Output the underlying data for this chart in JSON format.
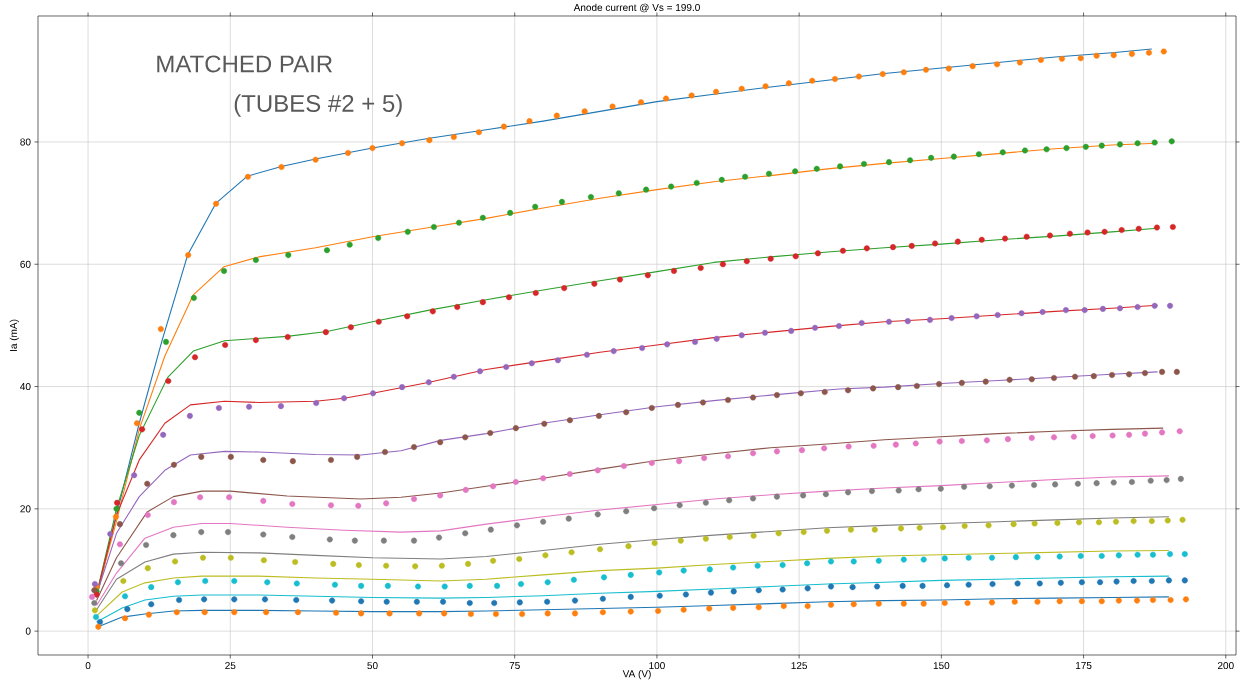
{
  "chart_data": {
    "type": "line",
    "title": "Anode current @ Vs = 199.0",
    "xlabel": "VA (V)",
    "ylabel": "Ia (mA)",
    "annotations": [
      "MATCHED PAIR",
      "(TUBES #2 + 5)"
    ],
    "xlim": [
      -8.8,
      201.8
    ],
    "ylim": [
      -3.9,
      100.6
    ],
    "xticks": [
      0,
      25,
      50,
      75,
      100,
      125,
      150,
      175,
      200
    ],
    "yticks": [
      0,
      20,
      40,
      60,
      80
    ],
    "grid": true,
    "marker": "circle",
    "series": [
      {
        "marker": "none",
        "color": "#1f77b4",
        "x": [
          1.5,
          5,
          9,
          13,
          17.5,
          22.5,
          28,
          34,
          40,
          50,
          60,
          70,
          80,
          90,
          100,
          110,
          120,
          130,
          140,
          150,
          160,
          170,
          180,
          187
        ],
        "values": [
          5.5,
          19,
          34,
          47.5,
          61.5,
          70,
          74.4,
          76,
          77.2,
          79,
          80.6,
          82,
          83.4,
          85,
          86.6,
          87.8,
          89,
          90.1,
          91.2,
          92.1,
          93,
          93.9,
          94.6,
          95.2
        ]
      },
      {
        "type": "scatter",
        "color": "#ff7f0e",
        "x": [
          1.5,
          4.9,
          8.6,
          12.8,
          17.6,
          22.5,
          28.1,
          34,
          40,
          45.7,
          50,
          55.2,
          60,
          64.3,
          68.7,
          73.1,
          77.6,
          82.4,
          87.3,
          92.2,
          97.2,
          101.6,
          106.1,
          110.4,
          114.9,
          119.1,
          123.2,
          127.3,
          131.3,
          135.5,
          139.7,
          143.4,
          147.3,
          151.3,
          155.5,
          159.8,
          163.8,
          167.5,
          171.2,
          174.5,
          177.3,
          180.3,
          183.5,
          186.5,
          189.1
        ],
        "values": [
          7.2,
          18.7,
          34.0,
          49.4,
          61.5,
          69.9,
          74.3,
          75.9,
          77.1,
          78.2,
          79.0,
          79.8,
          80.3,
          80.8,
          81.6,
          82.5,
          83.4,
          84.3,
          85.0,
          85.8,
          86.5,
          87.1,
          87.6,
          88.2,
          88.7,
          89.1,
          89.6,
          90.0,
          90.3,
          90.7,
          91.1,
          91.4,
          91.8,
          92.0,
          92.4,
          92.7,
          93.0,
          93.4,
          93.6,
          93.7,
          94.1,
          94.2,
          94.4,
          94.6,
          94.8
        ]
      },
      {
        "marker": "none",
        "color": "#ff7f0e",
        "x": [
          1.5,
          5,
          9,
          13.5,
          18.5,
          23.9,
          30,
          40,
          50,
          60,
          70,
          80,
          90,
          100,
          110,
          120,
          130,
          140,
          150,
          160,
          170,
          180,
          188
        ],
        "values": [
          6,
          18,
          33,
          45,
          55,
          59.6,
          61.2,
          62.7,
          64.5,
          66,
          67.5,
          69.2,
          70.8,
          72.2,
          73.5,
          74.5,
          75.6,
          76.5,
          77.3,
          78.1,
          78.9,
          79.5,
          79.8
        ]
      },
      {
        "type": "scatter",
        "color": "#2ca02c",
        "x": [
          1.5,
          5,
          9,
          13.7,
          18.6,
          23.9,
          29.5,
          35.2,
          42,
          46,
          51,
          56.2,
          60.8,
          65.2,
          69.4,
          74.2,
          78.6,
          83.3,
          88.4,
          93.3,
          98.1,
          102.5,
          107,
          111.4,
          115.5,
          119.7,
          124.3,
          128.1,
          132.2,
          136.4,
          140.8,
          144.5,
          148.2,
          152.2,
          156.6,
          160.8,
          164.7,
          168.5,
          172,
          175.4,
          178.2,
          181.4,
          184.5,
          187.5,
          190.5
        ],
        "values": [
          6.5,
          20,
          35.7,
          47.3,
          54.5,
          58.9,
          60.7,
          61.5,
          62.3,
          63.2,
          64.3,
          65.3,
          66.1,
          66.8,
          67.6,
          68.4,
          69.4,
          70.2,
          71.0,
          71.6,
          72.2,
          72.7,
          73.3,
          73.8,
          74.3,
          74.8,
          75.2,
          75.6,
          76.0,
          76.4,
          76.7,
          77.0,
          77.4,
          77.6,
          78.0,
          78.3,
          78.6,
          78.8,
          79.0,
          79.2,
          79.4,
          79.6,
          79.8,
          79.9,
          80.1
        ]
      },
      {
        "marker": "none",
        "color": "#2ca02c",
        "x": [
          1.5,
          5,
          9,
          14,
          18.5,
          24,
          35,
          42,
          50,
          60,
          70,
          80,
          90,
          100,
          110,
          120,
          130,
          140,
          150,
          160,
          170,
          180,
          188
        ],
        "values": [
          6,
          20,
          32,
          41.5,
          45.8,
          47.5,
          48.2,
          49,
          50.6,
          52.5,
          54.2,
          55.8,
          57.3,
          58.8,
          60.3,
          61.2,
          62,
          62.7,
          63.3,
          64,
          64.6,
          65.3,
          65.9
        ]
      },
      {
        "type": "scatter",
        "color": "#d62728",
        "x": [
          1.5,
          5.1,
          9.5,
          14.1,
          18.8,
          24.1,
          29.5,
          35.1,
          41.8,
          46.2,
          51.1,
          56.1,
          60.6,
          64.9,
          69.4,
          74,
          78.7,
          83.7,
          89,
          93.5,
          98.4,
          103,
          107.7,
          111.6,
          115.8,
          120,
          124.4,
          128.3,
          132.7,
          136.9,
          141.5,
          144.8,
          148.9,
          152.9,
          157.1,
          161.2,
          165,
          169.1,
          172.6,
          175.7,
          178.7,
          181.7,
          184.7,
          187.9,
          190.7
        ],
        "values": [
          6.0,
          21.0,
          33.0,
          40.9,
          44.8,
          46.8,
          47.6,
          48.1,
          48.9,
          49.7,
          50.6,
          51.5,
          52.3,
          53.0,
          53.8,
          54.6,
          55.3,
          56.1,
          56.8,
          57.5,
          58.2,
          58.9,
          59.4,
          60.0,
          60.5,
          60.9,
          61.3,
          61.8,
          62.2,
          62.6,
          62.8,
          63.0,
          63.4,
          63.7,
          64.0,
          64.2,
          64.5,
          64.7,
          65.0,
          65.2,
          65.3,
          65.6,
          65.8,
          66.0,
          66.1
        ]
      },
      {
        "marker": "none",
        "color": "#d62728",
        "x": [
          1.5,
          5,
          9,
          13.5,
          18,
          24,
          30,
          40,
          45,
          50,
          60,
          70,
          80,
          90,
          100,
          110,
          120,
          130,
          140,
          150,
          160,
          170,
          180,
          188
        ],
        "values": [
          6,
          19,
          28,
          34,
          37,
          37.6,
          37.4,
          37.6,
          38.1,
          38.9,
          40.7,
          42.8,
          44.2,
          45.6,
          46.8,
          48.0,
          48.9,
          49.8,
          50.6,
          51.1,
          51.7,
          52.3,
          52.8,
          53.3
        ]
      },
      {
        "type": "scatter",
        "color": "#9467bd",
        "x": [
          1.2,
          3.9,
          8.1,
          13.2,
          17.9,
          23,
          28.3,
          33.9,
          40.1,
          45,
          50.1,
          55.2,
          59.9,
          64.3,
          68.9,
          73.5,
          78,
          82.6,
          87.7,
          92.4,
          97.4,
          101.8,
          106.7,
          110.5,
          114.9,
          119,
          123.6,
          127.8,
          132,
          136,
          140.8,
          144.1,
          148,
          151.8,
          156.2,
          159.9,
          164.1,
          167.8,
          171.9,
          175.2,
          178.4,
          181.4,
          184.5,
          187.5,
          190.2
        ],
        "values": [
          7.7,
          15.9,
          25.5,
          32.1,
          35.2,
          36.5,
          36.7,
          36.8,
          37.3,
          38.1,
          38.9,
          39.9,
          40.7,
          41.6,
          42.5,
          43.2,
          43.8,
          44.3,
          45.2,
          45.8,
          46.3,
          46.9,
          47.3,
          47.8,
          48.4,
          48.8,
          49.1,
          49.6,
          49.9,
          50.4,
          50.6,
          50.7,
          50.9,
          51.2,
          51.5,
          51.7,
          52.0,
          52.2,
          52.5,
          52.5,
          52.7,
          52.8,
          53.0,
          53.2,
          53.2
        ]
      },
      {
        "marker": "none",
        "color": "#9467bd",
        "x": [
          1.5,
          5,
          9,
          13.5,
          18,
          24,
          30,
          40,
          48,
          55,
          62,
          70,
          80,
          90,
          100,
          110,
          120,
          132,
          140,
          150,
          160,
          170,
          180,
          188
        ],
        "values": [
          6,
          16,
          22,
          26.3,
          28.8,
          29.4,
          29.3,
          28.9,
          28.8,
          29.5,
          31.2,
          32.3,
          34,
          35.4,
          36.7,
          37.7,
          38.6,
          39.6,
          39.9,
          40.5,
          41,
          41.5,
          42,
          42.4
        ]
      },
      {
        "type": "scatter",
        "color": "#8c564b",
        "x": [
          1.1,
          5.6,
          10.4,
          15.1,
          19.9,
          25.1,
          30.8,
          36,
          42.7,
          47.3,
          52.2,
          57.3,
          61.9,
          66.3,
          70.7,
          75.2,
          80.2,
          84.7,
          89.8,
          94.6,
          99.1,
          103.7,
          108.1,
          112.5,
          116.9,
          121.1,
          125.3,
          129.5,
          133.6,
          138,
          142.4,
          145.7,
          149.6,
          153.6,
          157.8,
          162,
          165.9,
          169.8,
          173.5,
          176.8,
          180,
          183,
          185.8,
          188.8,
          191.4
        ],
        "values": [
          6.7,
          17.5,
          24.1,
          27.2,
          28.5,
          28.5,
          28.0,
          27.8,
          28.0,
          28.5,
          29.3,
          30.1,
          30.9,
          31.7,
          32.4,
          33.2,
          33.9,
          34.5,
          35.2,
          35.8,
          36.5,
          37.0,
          37.4,
          37.8,
          38.2,
          38.6,
          38.9,
          39.1,
          39.4,
          39.7,
          39.9,
          40.1,
          40.4,
          40.6,
          40.8,
          41.1,
          41.2,
          41.4,
          41.6,
          41.7,
          41.9,
          42.0,
          42.2,
          42.4,
          42.4
        ]
      },
      {
        "marker": "none",
        "color": "#8c564b",
        "x": [
          1.5,
          5,
          10.4,
          15,
          20,
          25,
          35,
          48,
          55,
          62,
          70,
          80,
          90,
          100,
          110,
          120,
          130,
          140,
          150,
          160,
          170,
          180,
          189
        ],
        "values": [
          5,
          12,
          19.5,
          22,
          22.9,
          22.9,
          22.1,
          21.6,
          21.9,
          22.6,
          23.7,
          25,
          26.5,
          27.9,
          29,
          30,
          30.6,
          31.3,
          31.8,
          32.3,
          32.7,
          33,
          33.2
        ]
      },
      {
        "type": "scatter",
        "color": "#e377c2",
        "x": [
          0.7,
          5.6,
          10.5,
          15.1,
          19.7,
          24.8,
          30.8,
          35.9,
          42.7,
          47.5,
          52.4,
          57.3,
          61.9,
          66.4,
          71.2,
          75.2,
          80,
          84.7,
          89.6,
          94.2,
          99.1,
          103.9,
          108.3,
          112.5,
          116.9,
          121.1,
          125.5,
          129.4,
          133.7,
          138.1,
          142,
          145.5,
          149.7,
          153.6,
          158,
          161.7,
          165.9,
          169.8,
          173.3,
          176.6,
          180.1,
          183,
          185.8,
          188.8,
          191.9
        ],
        "values": [
          5.6,
          14.2,
          19.0,
          21.1,
          21.9,
          21.9,
          21.3,
          20.8,
          20.6,
          20.5,
          20.9,
          21.6,
          22.2,
          23.1,
          23.7,
          24.4,
          25.0,
          25.7,
          26.3,
          27.0,
          27.5,
          27.8,
          28.3,
          28.6,
          29.1,
          29.4,
          29.6,
          29.9,
          30.2,
          30.3,
          30.5,
          30.7,
          31.0,
          31.1,
          31.2,
          31.4,
          31.6,
          31.7,
          31.8,
          31.9,
          32.0,
          32.1,
          32.3,
          32.5,
          32.7
        ]
      },
      {
        "marker": "none",
        "color": "#e377c2",
        "x": [
          1.5,
          5,
          10,
          15,
          20,
          25,
          35,
          45,
          55,
          62,
          70,
          80,
          90,
          100,
          110,
          120,
          130,
          140,
          150,
          160,
          170,
          180,
          190
        ],
        "values": [
          4.2,
          9.5,
          15.2,
          17,
          17.6,
          17.6,
          17,
          16.5,
          16.2,
          16.4,
          17.5,
          18.7,
          19.8,
          20.7,
          21.6,
          22.3,
          22.9,
          23.4,
          23.8,
          24.3,
          24.8,
          25.2,
          25.4
        ]
      },
      {
        "type": "scatter",
        "color": "#7f7f7f",
        "x": [
          1.1,
          5.8,
          10.2,
          15,
          19.9,
          24.6,
          30.8,
          35.9,
          42.5,
          46.9,
          52,
          57.3,
          61.7,
          66.3,
          70.8,
          75.4,
          80,
          84.5,
          89.6,
          94.6,
          99.5,
          104,
          108.6,
          112.7,
          116.9,
          121.1,
          125.7,
          129.7,
          133.6,
          137.8,
          142.5,
          146,
          149.9,
          154,
          158.5,
          162.4,
          166.3,
          170,
          174,
          177.3,
          180.3,
          183.5,
          186.8,
          189.6,
          192.1
        ],
        "values": [
          4.6,
          11.1,
          14.1,
          15.7,
          16.2,
          16.2,
          15.8,
          15.4,
          15.0,
          14.8,
          14.8,
          14.8,
          15.3,
          16.0,
          16.6,
          17.3,
          17.9,
          18.4,
          19.1,
          19.6,
          20.1,
          20.6,
          21.0,
          21.4,
          21.7,
          22.0,
          22.2,
          22.4,
          22.7,
          22.9,
          23.0,
          23.2,
          23.3,
          23.6,
          23.7,
          23.8,
          23.9,
          24.0,
          24.1,
          24.2,
          24.3,
          24.4,
          24.6,
          24.7,
          24.9
        ]
      },
      {
        "marker": "none",
        "color": "#7f7f7f",
        "x": [
          1.5,
          5,
          10,
          15,
          20,
          30,
          40,
          50,
          62,
          70,
          80,
          90,
          100,
          110,
          120,
          130,
          140,
          150,
          160,
          170,
          180,
          190
        ],
        "values": [
          3.5,
          8.5,
          11.3,
          12.6,
          12.9,
          12.8,
          12.4,
          12,
          11.8,
          12.2,
          13.2,
          14.2,
          15,
          15.7,
          16.3,
          16.9,
          17.3,
          17.6,
          17.9,
          18.2,
          18.5,
          18.7
        ]
      },
      {
        "type": "scatter",
        "color": "#bcbd22",
        "x": [
          1.2,
          6.2,
          10.5,
          15.3,
          20.2,
          25.1,
          30.9,
          36.4,
          43.1,
          47.6,
          52.4,
          57.5,
          62.2,
          66.8,
          71.2,
          75.8,
          80.4,
          85,
          90,
          95,
          99.6,
          104.2,
          108.6,
          112.8,
          117,
          121.4,
          125.8,
          129.9,
          134.1,
          138.3,
          142.9,
          146.2,
          150.3,
          154.1,
          158.3,
          162.7,
          166.4,
          170.4,
          174.2,
          177.7,
          180.7,
          183.8,
          187,
          189.8,
          192.4
        ],
        "values": [
          3.4,
          8.2,
          10.3,
          11.4,
          12.0,
          12.0,
          11.6,
          11.3,
          11.0,
          10.8,
          10.7,
          10.6,
          10.7,
          11.0,
          11.5,
          11.8,
          12.4,
          12.9,
          13.4,
          13.9,
          14.4,
          14.8,
          15.1,
          15.4,
          15.6,
          16.0,
          16.2,
          16.4,
          16.6,
          16.6,
          16.8,
          16.9,
          17.0,
          17.2,
          17.3,
          17.5,
          17.6,
          17.7,
          17.8,
          17.8,
          17.9,
          18.0,
          18.0,
          18.1,
          18.2
        ]
      },
      {
        "marker": "none",
        "color": "#bcbd22",
        "x": [
          1.5,
          6,
          10,
          15,
          20,
          30,
          40,
          50,
          62,
          70,
          80,
          90,
          100,
          110,
          120,
          130,
          140,
          150,
          160,
          170,
          180,
          190
        ],
        "values": [
          2.5,
          6.4,
          7.9,
          8.7,
          9.0,
          9.0,
          8.7,
          8.5,
          8.2,
          8.5,
          9.2,
          9.9,
          10.3,
          10.9,
          11.4,
          11.9,
          12.3,
          12.5,
          12.7,
          12.9,
          13.1,
          13.2
        ]
      },
      {
        "type": "scatter",
        "color": "#17becf",
        "x": [
          1.4,
          6.5,
          11.1,
          15.8,
          20.6,
          25.7,
          31.5,
          36.7,
          43.4,
          48,
          52.7,
          58,
          62.7,
          67.1,
          71.9,
          76.1,
          80.8,
          85.4,
          90.7,
          95.4,
          100.4,
          104.7,
          109.3,
          113.4,
          117.7,
          122.1,
          126.4,
          130.6,
          134.6,
          139,
          143.4,
          146.9,
          150.6,
          154.8,
          158.9,
          163.1,
          166.9,
          170.8,
          174.5,
          178.2,
          181.2,
          184.5,
          187.2,
          190.2,
          192.8
        ],
        "values": [
          2.3,
          5.7,
          7.2,
          8.0,
          8.2,
          8.2,
          8.0,
          7.8,
          7.6,
          7.4,
          7.4,
          7.3,
          7.3,
          7.4,
          7.4,
          7.7,
          8.0,
          8.4,
          8.8,
          9.2,
          9.6,
          9.9,
          10.1,
          10.4,
          10.7,
          10.8,
          11.1,
          11.4,
          11.4,
          11.5,
          11.7,
          11.7,
          11.9,
          12.0,
          12.0,
          12.1,
          12.1,
          12.2,
          12.3,
          12.3,
          12.4,
          12.5,
          12.5,
          12.6,
          12.6
        ]
      },
      {
        "marker": "none",
        "color": "#17becf",
        "x": [
          1.5,
          6,
          10,
          15,
          20,
          30,
          40,
          50,
          62,
          70,
          80,
          90,
          100,
          110,
          120,
          130,
          140,
          150,
          160,
          170,
          180,
          190
        ],
        "values": [
          1.5,
          3.8,
          5.1,
          5.7,
          5.9,
          5.9,
          5.7,
          5.5,
          5.4,
          5.5,
          5.8,
          6.2,
          6.5,
          6.9,
          7.3,
          7.7,
          8.0,
          8.3,
          8.5,
          8.7,
          8.9,
          9.0
        ]
      },
      {
        "type": "scatter",
        "color": "#1f77b4",
        "x": [
          2.1,
          6.9,
          11.1,
          16,
          20.4,
          25.7,
          31.1,
          36.6,
          42.9,
          48,
          52.5,
          57.8,
          62.4,
          67.1,
          71.4,
          75.9,
          80.7,
          85.6,
          90.5,
          95.4,
          100.5,
          105.1,
          109.5,
          113.5,
          117.9,
          122.1,
          126.5,
          130.6,
          134.4,
          138.7,
          143.2,
          146.7,
          151,
          154.8,
          159,
          163.4,
          167.3,
          171,
          174.7,
          177.9,
          180.8,
          183.8,
          187,
          190,
          192.8
        ],
        "values": [
          1.5,
          3.6,
          4.4,
          5.1,
          5.2,
          5.2,
          5.2,
          5.1,
          5.0,
          4.9,
          4.8,
          4.8,
          4.8,
          4.6,
          4.6,
          4.7,
          4.8,
          5.0,
          5.3,
          5.6,
          5.8,
          6.0,
          6.3,
          6.5,
          6.7,
          6.8,
          7.0,
          7.3,
          7.2,
          7.3,
          7.4,
          7.4,
          7.5,
          7.6,
          7.7,
          7.8,
          7.8,
          7.9,
          8.0,
          8.0,
          8.1,
          8.2,
          8.2,
          8.3,
          8.3
        ]
      },
      {
        "marker": "none",
        "color": "#1f77b4",
        "x": [
          2,
          6,
          10,
          15,
          20,
          30,
          40,
          50,
          62,
          70,
          80,
          90,
          100,
          110,
          120,
          130,
          140,
          150,
          160,
          170,
          180,
          190
        ],
        "values": [
          0.8,
          2.3,
          2.8,
          3.3,
          3.4,
          3.4,
          3.3,
          3.2,
          3.2,
          3.3,
          3.5,
          3.7,
          3.9,
          4.2,
          4.5,
          4.8,
          5.0,
          5.1,
          5.3,
          5.4,
          5.5,
          5.6
        ]
      },
      {
        "type": "scatter",
        "color": "#ff7f0e",
        "x": [
          1.8,
          6.5,
          10.7,
          15.6,
          20.5,
          25.7,
          31.3,
          36.9,
          43.6,
          48,
          53,
          58.2,
          62.6,
          67.3,
          71.7,
          76.3,
          80.8,
          85.6,
          90.5,
          95.4,
          100.2,
          104.7,
          109.2,
          113.4,
          117.9,
          122.3,
          126.5,
          130.6,
          134.6,
          139,
          143.4,
          146.9,
          150.6,
          154.6,
          158.9,
          162.9,
          166.9,
          170.8,
          174.7,
          178.2,
          181.2,
          184.4,
          187.2,
          190.3,
          193
        ],
        "values": [
          0.7,
          2.1,
          2.7,
          3.1,
          3.1,
          3.1,
          3.1,
          3.1,
          3.0,
          2.9,
          2.9,
          2.9,
          2.9,
          2.8,
          2.8,
          2.8,
          2.9,
          2.9,
          3.1,
          3.2,
          3.3,
          3.5,
          3.7,
          3.8,
          3.9,
          4.1,
          4.1,
          4.3,
          4.4,
          4.5,
          4.5,
          4.5,
          4.6,
          4.6,
          4.7,
          4.8,
          4.8,
          4.9,
          4.9,
          4.9,
          5.0,
          5.0,
          5.1,
          5.1,
          5.2
        ]
      }
    ]
  }
}
